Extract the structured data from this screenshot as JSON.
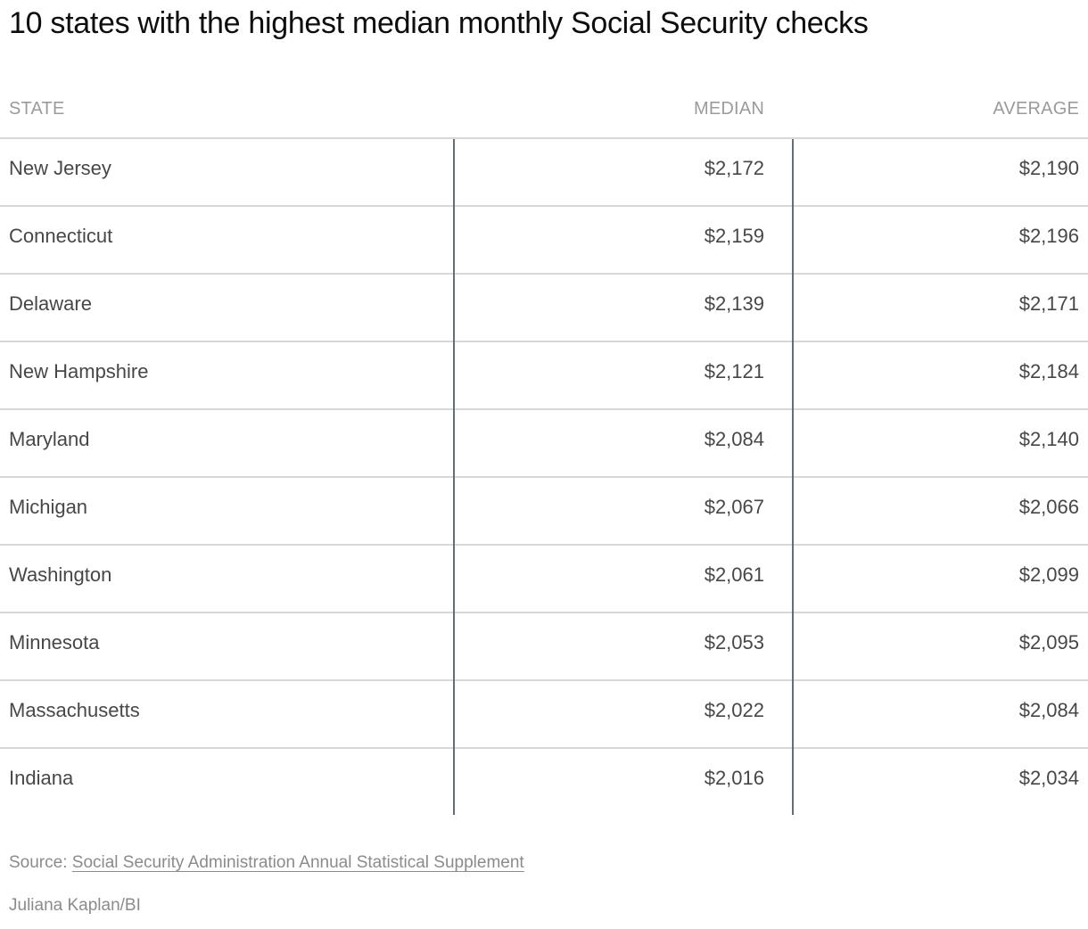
{
  "title": "10 states with the highest median monthly Social Security checks",
  "table": {
    "columns": [
      "STATE",
      "MEDIAN",
      "AVERAGE"
    ],
    "rows": [
      {
        "state": "New Jersey",
        "median": "$2,172",
        "average": "$2,190"
      },
      {
        "state": "Connecticut",
        "median": "$2,159",
        "average": "$2,196"
      },
      {
        "state": "Delaware",
        "median": "$2,139",
        "average": "$2,171"
      },
      {
        "state": "New Hampshire",
        "median": "$2,121",
        "average": "$2,184"
      },
      {
        "state": "Maryland",
        "median": "$2,084",
        "average": "$2,140"
      },
      {
        "state": "Michigan",
        "median": "$2,067",
        "average": "$2,066"
      },
      {
        "state": "Washington",
        "median": "$2,061",
        "average": "$2,099"
      },
      {
        "state": "Minnesota",
        "median": "$2,053",
        "average": "$2,095"
      },
      {
        "state": "Massachusetts",
        "median": "$2,022",
        "average": "$2,084"
      },
      {
        "state": "Indiana",
        "median": "$2,016",
        "average": "$2,034"
      }
    ]
  },
  "footer": {
    "source_label": "Source:",
    "source_link": "Social Security Administration Annual Statistical Supplement",
    "byline": "Juliana Kaplan/BI"
  },
  "colors": {
    "title_text": "#0d0d0d",
    "header_text": "#9b9b9b",
    "cell_text": "#474747",
    "row_divider": "#d7d7d7",
    "column_divider": "#60707a",
    "footer_text": "#8b8b8b"
  },
  "chart_data": {
    "type": "table",
    "title": "10 states with the highest median monthly Social Security checks",
    "columns": [
      "STATE",
      "MEDIAN",
      "AVERAGE"
    ],
    "rows": [
      [
        "New Jersey",
        2172,
        2190
      ],
      [
        "Connecticut",
        2159,
        2196
      ],
      [
        "Delaware",
        2139,
        2171
      ],
      [
        "New Hampshire",
        2121,
        2184
      ],
      [
        "Maryland",
        2084,
        2140
      ],
      [
        "Michigan",
        2067,
        2066
      ],
      [
        "Washington",
        2061,
        2099
      ],
      [
        "Minnesota",
        2053,
        2095
      ],
      [
        "Massachusetts",
        2022,
        2084
      ],
      [
        "Indiana",
        2016,
        2034
      ]
    ],
    "units": "USD per month",
    "source": "Social Security Administration Annual Statistical Supplement",
    "byline": "Juliana Kaplan/BI"
  }
}
